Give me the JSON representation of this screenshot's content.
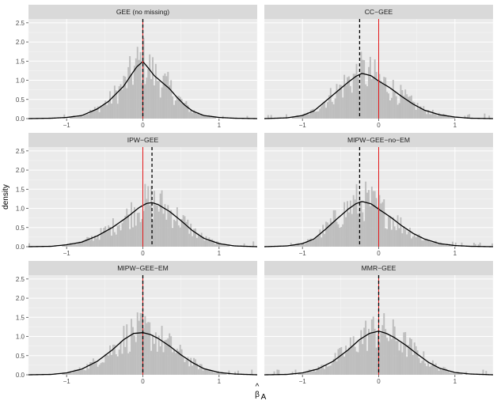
{
  "chart_data": {
    "type": "histogram",
    "ylabel": "density",
    "xlabel_main": "β",
    "xlabel_hat": "^",
    "xlabel_sub": "A",
    "xlim": [
      -1.5,
      1.5
    ],
    "ylim": [
      0,
      2.6
    ],
    "x_ticks": [
      -1,
      0,
      1
    ],
    "x_tick_labels": [
      "−1",
      "0",
      "1"
    ],
    "y_ticks": [
      0,
      0.5,
      1,
      1.5,
      2,
      2.5
    ],
    "y_tick_labels": [
      "0.0",
      "0.5",
      "1.0",
      "1.5",
      "2.0",
      "2.5"
    ],
    "grid": true,
    "colors": {
      "panel_bg": "#ebebeb",
      "strip_bg": "#d9d9d9",
      "bars": "#bdbdbd",
      "density_line": "#000000",
      "true_value_line": "#e41a1c",
      "mean_line": "#000000"
    },
    "panels": [
      {
        "title": "GEE (no missing)",
        "true_value": 0,
        "mean_estimate": 0.0,
        "density": {
          "x": [
            -1.5,
            -1.2,
            -1.0,
            -0.8,
            -0.6,
            -0.45,
            -0.35,
            -0.25,
            -0.15,
            -0.08,
            0,
            0.08,
            0.15,
            0.25,
            0.35,
            0.45,
            0.55,
            0.65,
            0.8,
            1.0,
            1.2,
            1.5
          ],
          "y": [
            0.0,
            0.01,
            0.03,
            0.08,
            0.25,
            0.45,
            0.65,
            0.85,
            1.15,
            1.35,
            1.49,
            1.3,
            1.12,
            0.95,
            0.78,
            0.55,
            0.35,
            0.2,
            0.08,
            0.03,
            0.01,
            0.0
          ]
        }
      },
      {
        "title": "CC−GEE",
        "true_value": 0,
        "mean_estimate": -0.25,
        "density": {
          "x": [
            -1.5,
            -1.2,
            -1.0,
            -0.85,
            -0.7,
            -0.55,
            -0.4,
            -0.3,
            -0.22,
            -0.1,
            0,
            0.15,
            0.3,
            0.45,
            0.6,
            0.8,
            1.0,
            1.2,
            1.5
          ],
          "y": [
            0.0,
            0.02,
            0.08,
            0.2,
            0.45,
            0.7,
            0.95,
            1.1,
            1.18,
            1.12,
            0.98,
            0.8,
            0.58,
            0.38,
            0.22,
            0.1,
            0.04,
            0.01,
            0.0
          ]
        }
      },
      {
        "title": "IPW−GEE",
        "true_value": 0,
        "mean_estimate": 0.12,
        "density": {
          "x": [
            -1.5,
            -1.2,
            -1.0,
            -0.8,
            -0.6,
            -0.4,
            -0.2,
            -0.05,
            0.05,
            0.12,
            0.2,
            0.35,
            0.5,
            0.65,
            0.8,
            1.0,
            1.2,
            1.5
          ],
          "y": [
            0.0,
            0.01,
            0.05,
            0.12,
            0.28,
            0.5,
            0.78,
            1.02,
            1.13,
            1.15,
            1.1,
            0.92,
            0.68,
            0.42,
            0.22,
            0.08,
            0.02,
            0.0
          ]
        }
      },
      {
        "title": "MIPW−GEE−no−EM",
        "true_value": 0,
        "mean_estimate": -0.25,
        "density": {
          "x": [
            -1.5,
            -1.2,
            -1.0,
            -0.85,
            -0.7,
            -0.55,
            -0.4,
            -0.3,
            -0.22,
            -0.1,
            0,
            0.15,
            0.3,
            0.45,
            0.6,
            0.8,
            1.0,
            1.2,
            1.5
          ],
          "y": [
            0.0,
            0.02,
            0.08,
            0.2,
            0.45,
            0.72,
            0.98,
            1.12,
            1.18,
            1.12,
            0.98,
            0.78,
            0.55,
            0.35,
            0.2,
            0.08,
            0.03,
            0.01,
            0.0
          ]
        }
      },
      {
        "title": "MIPW−GEE−EM",
        "true_value": 0,
        "mean_estimate": 0.0,
        "density": {
          "x": [
            -1.5,
            -1.2,
            -1.0,
            -0.8,
            -0.6,
            -0.4,
            -0.25,
            -0.12,
            0,
            0.1,
            0.2,
            0.35,
            0.5,
            0.65,
            0.8,
            1.0,
            1.2,
            1.5
          ],
          "y": [
            0.0,
            0.01,
            0.05,
            0.15,
            0.35,
            0.65,
            0.92,
            1.08,
            1.1,
            1.05,
            0.95,
            0.75,
            0.52,
            0.32,
            0.16,
            0.06,
            0.02,
            0.0
          ]
        }
      },
      {
        "title": "MMR−GEE",
        "true_value": 0,
        "mean_estimate": 0.0,
        "density": {
          "x": [
            -1.5,
            -1.2,
            -1.0,
            -0.8,
            -0.6,
            -0.4,
            -0.25,
            -0.12,
            0,
            0.1,
            0.2,
            0.35,
            0.5,
            0.65,
            0.8,
            1.0,
            1.2,
            1.5
          ],
          "y": [
            0.0,
            0.01,
            0.05,
            0.15,
            0.35,
            0.65,
            0.92,
            1.08,
            1.14,
            1.08,
            0.98,
            0.78,
            0.55,
            0.33,
            0.17,
            0.06,
            0.02,
            0.0
          ]
        }
      }
    ]
  }
}
